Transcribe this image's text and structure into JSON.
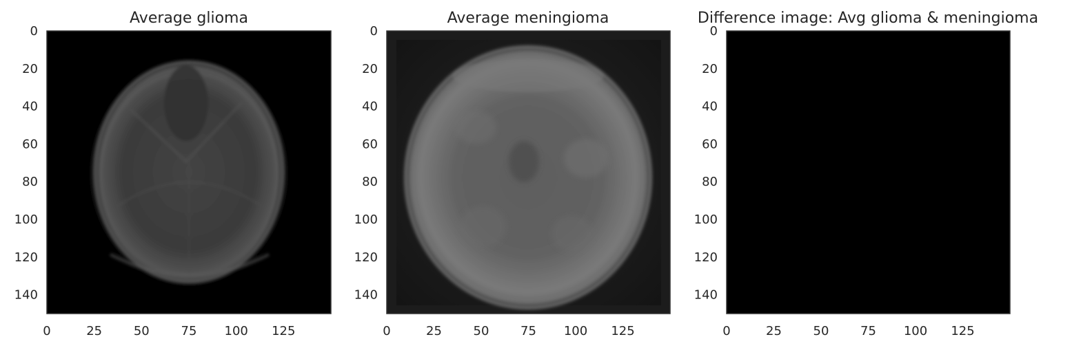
{
  "chart_data": [
    {
      "type": "heatmap",
      "title": "Average glioma",
      "xlabel": "",
      "ylabel": "",
      "xlim": [
        0,
        149
      ],
      "ylim": [
        149,
        0
      ],
      "x_ticks": [
        0,
        25,
        50,
        75,
        100,
        125
      ],
      "y_ticks": [
        0,
        20,
        40,
        60,
        80,
        100,
        120,
        140
      ],
      "colormap": "gray",
      "image": "grayscale average of glioma brain MRI scans",
      "grid": false
    },
    {
      "type": "heatmap",
      "title": "Average meningioma",
      "xlabel": "",
      "ylabel": "",
      "xlim": [
        0,
        149
      ],
      "ylim": [
        149,
        0
      ],
      "x_ticks": [
        0,
        25,
        50,
        75,
        100,
        125
      ],
      "y_ticks": [
        0,
        20,
        40,
        60,
        80,
        100,
        120,
        140
      ],
      "colormap": "gray",
      "image": "grayscale average of meningioma brain MRI scans",
      "grid": false
    },
    {
      "type": "heatmap",
      "title": "Difference image: Avg glioma & meningioma",
      "xlabel": "",
      "ylabel": "",
      "xlim": [
        0,
        149
      ],
      "ylim": [
        149,
        0
      ],
      "x_ticks": [
        0,
        25,
        50,
        75,
        100,
        125
      ],
      "y_ticks": [
        0,
        20,
        40,
        60,
        80,
        100,
        120,
        140
      ],
      "colormap": "gray",
      "image": "uniform black",
      "grid": false
    }
  ],
  "colors": {
    "background": "#ffffff",
    "axes_edge": "#333333",
    "text": "#262626",
    "image_black": "#000000"
  }
}
